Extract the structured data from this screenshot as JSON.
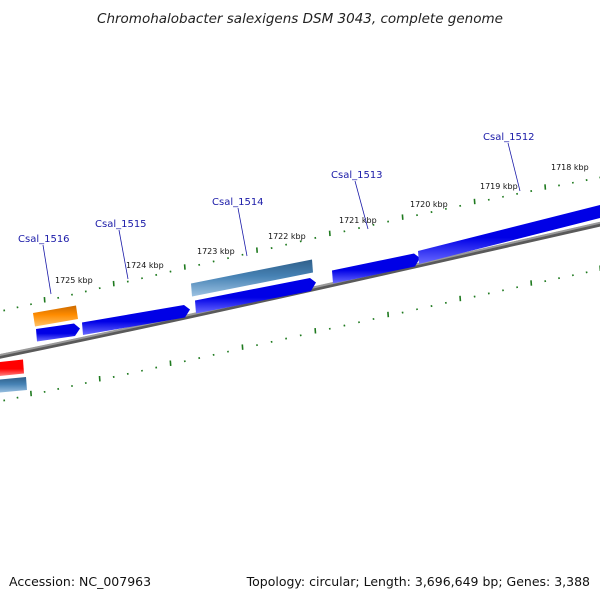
{
  "title": "Chromohalobacter salexigens DSM 3043, complete genome",
  "footer": {
    "accession": "Accession: NC_007963",
    "summary": "Topology: circular; Length: 3,696,649 bp; Genes: 3,388"
  },
  "ruler": {
    "kbp_labels": [
      {
        "text": "1725 kbp",
        "kbp": 1725
      },
      {
        "text": "1724 kbp",
        "kbp": 1724
      },
      {
        "text": "1723 kbp",
        "kbp": 1723
      },
      {
        "text": "1722 kbp",
        "kbp": 1722
      },
      {
        "text": "1721 kbp",
        "kbp": 1721
      },
      {
        "text": "1720 kbp",
        "kbp": 1720
      },
      {
        "text": "1719 kbp",
        "kbp": 1719
      },
      {
        "text": "1718 kbp",
        "kbp": 1718
      }
    ]
  },
  "gene_labels": [
    {
      "text": "Csal_1516"
    },
    {
      "text": "Csal_1515"
    },
    {
      "text": "Csal_1514"
    },
    {
      "text": "Csal_1513"
    },
    {
      "text": "Csal_1512"
    }
  ],
  "colors": {
    "cds_forward": "#0000e6",
    "cds_forward_light": "#5c5cff",
    "cds_reverse": "#4682b4",
    "cds_reverse_light": "#8fb8dc",
    "rna": "#ff8c00",
    "rna_light": "#ffc266",
    "other": "#ff0000",
    "other_light": "#ff7777",
    "backbone": "#8a8a8a",
    "tick": "#1f7a1f",
    "gene_label": "#1a1aa8"
  }
}
